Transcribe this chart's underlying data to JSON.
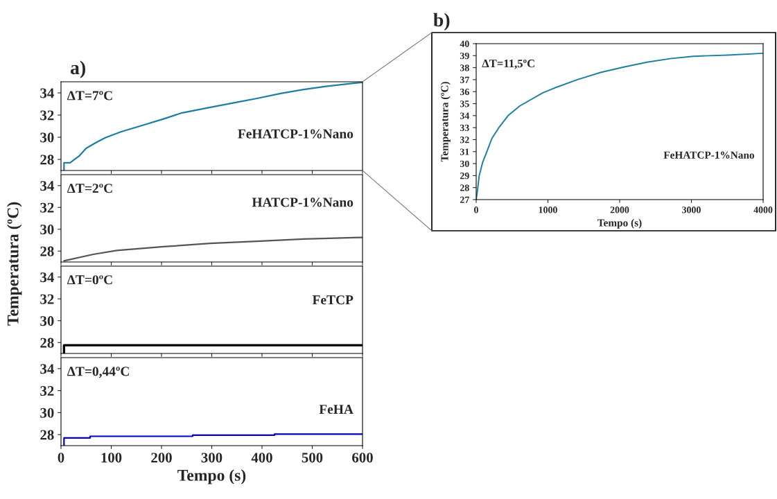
{
  "chart_data": [
    {
      "type": "line",
      "title": "a)",
      "xlim": [
        0,
        600
      ],
      "xticks": [
        0,
        100,
        200,
        300,
        400,
        500,
        600
      ],
      "ylim": [
        27,
        35
      ],
      "yticks": [
        28,
        30,
        32,
        34
      ],
      "tick_labels": "y",
      "grid": false,
      "legend": false,
      "annotations": [
        "ΔT=7ºC",
        "FeHATCP-1%Nano"
      ],
      "series": [
        {
          "color": "#1a7fa0",
          "x": [
            6,
            6,
            18,
            36,
            50,
            69,
            88,
            120,
            157,
            204,
            241,
            297,
            344,
            390,
            437,
            483,
            530,
            600
          ],
          "values": [
            27,
            27.7,
            27.7,
            28.3,
            29.0,
            29.5,
            29.95,
            30.5,
            31.0,
            31.65,
            32.2,
            32.7,
            33.1,
            33.5,
            33.95,
            34.3,
            34.6,
            34.95
          ]
        }
      ]
    },
    {
      "type": "line",
      "xlim": [
        0,
        600
      ],
      "xticks": [
        0,
        100,
        200,
        300,
        400,
        500,
        600
      ],
      "ylim": [
        27,
        35
      ],
      "yticks": [
        28,
        30,
        32,
        34
      ],
      "tick_labels": "y",
      "grid": false,
      "legend": false,
      "ylabel": "Temperatura (ºC)",
      "annotations": [
        "ΔT=2ºC",
        "HATCP-1%Nano"
      ],
      "series": [
        {
          "color": "#555555",
          "x": [
            6,
            64,
            111,
            204,
            297,
            390,
            483,
            600
          ],
          "values": [
            27.1,
            27.7,
            28.05,
            28.4,
            28.7,
            28.9,
            29.1,
            29.25
          ]
        }
      ]
    },
    {
      "type": "line",
      "xlim": [
        0,
        600
      ],
      "xticks": [
        0,
        100,
        200,
        300,
        400,
        500,
        600
      ],
      "ylim": [
        27,
        35
      ],
      "yticks": [
        28,
        30,
        32,
        34
      ],
      "tick_labels": "y",
      "grid": false,
      "legend": false,
      "annotations": [
        "ΔT=0ºC",
        "FeTCP"
      ],
      "series": [
        {
          "color": "#000000",
          "x": [
            6,
            6,
            100,
            200,
            300,
            400,
            500,
            600
          ],
          "values": [
            27,
            27.75,
            27.75,
            27.75,
            27.75,
            27.75,
            27.75,
            27.75
          ]
        }
      ]
    },
    {
      "type": "line",
      "xlim": [
        0,
        600
      ],
      "xticks": [
        0,
        100,
        200,
        300,
        400,
        500,
        600
      ],
      "ylim": [
        27,
        35
      ],
      "yticks": [
        28,
        30,
        32,
        34
      ],
      "grid": false,
      "legend": false,
      "xlabel": "Tempo (s)",
      "annotations": [
        "ΔT=0,44ºC",
        "FeHA"
      ],
      "series": [
        {
          "color": "#0000cc",
          "x": [
            6,
            6,
            58,
            58,
            262,
            262,
            425,
            425,
            600
          ],
          "values": [
            27,
            27.7,
            27.7,
            27.85,
            27.85,
            27.95,
            27.95,
            28.05,
            28.05
          ]
        }
      ]
    },
    {
      "type": "line",
      "title": "b)",
      "xlim": [
        0,
        4000
      ],
      "xticks": [
        0,
        1000,
        2000,
        3000,
        4000
      ],
      "ylim": [
        27,
        40
      ],
      "yticks": [
        27,
        28,
        29,
        30,
        31,
        32,
        33,
        34,
        35,
        36,
        37,
        38,
        39,
        40
      ],
      "grid": false,
      "legend": false,
      "xlabel": "Tempo (s)",
      "ylabel": "Temperatura (ºC)",
      "annotations": [
        "ΔT=11,5ºC",
        "FeHATCP-1%Nano"
      ],
      "series": [
        {
          "color": "#1a7fa0",
          "x": [
            0,
            19,
            42,
            90,
            155,
            219,
            316,
            445,
            606,
            767,
            929,
            1090,
            1412,
            1735,
            2057,
            2380,
            2702,
            3025,
            3508,
            4000
          ],
          "values": [
            27,
            27.8,
            29.0,
            30.1,
            31.1,
            32.1,
            33.0,
            34.0,
            34.8,
            35.35,
            35.9,
            36.3,
            37.0,
            37.6,
            38.05,
            38.45,
            38.75,
            38.95,
            39.05,
            39.2
          ]
        }
      ]
    }
  ]
}
